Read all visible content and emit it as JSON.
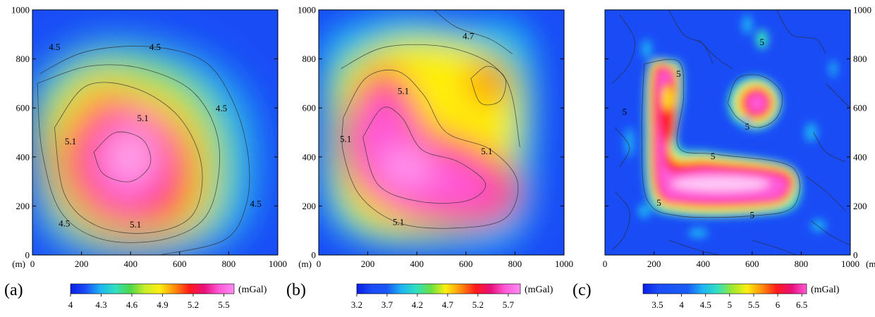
{
  "chart_data": [
    {
      "type": "heatmap",
      "panel_label": "(a)",
      "axis_unit": "(m)",
      "x_ticks": [
        "0",
        "200",
        "400",
        "600",
        "800",
        "1000"
      ],
      "y_ticks": [
        "0",
        "200",
        "400",
        "600",
        "800",
        "1000"
      ],
      "xlim": [
        0,
        1000
      ],
      "ylim": [
        0,
        1000
      ],
      "colorbar": {
        "unit": "(mGal)",
        "range": [
          4.0,
          5.6
        ],
        "ticks": [
          "4",
          "4.3",
          "4.6",
          "4.9",
          "5.2",
          "5.5"
        ],
        "colors": [
          "#0a1ee6",
          "#1a4cf6",
          "#1fb3f3",
          "#30e0c0",
          "#4fd64a",
          "#c8ee2a",
          "#ffef10",
          "#ff8f0c",
          "#ff1a1a",
          "#e8107a",
          "#ff5ad8",
          "#ff8cf2"
        ]
      },
      "contour_labels": [
        {
          "text": "4.5",
          "x": 90,
          "y": 845
        },
        {
          "text": "4.5",
          "x": 500,
          "y": 845
        },
        {
          "text": "4.5",
          "x": 770,
          "y": 595
        },
        {
          "text": "4.5",
          "x": 910,
          "y": 205
        },
        {
          "text": "4.5",
          "x": 130,
          "y": 125
        },
        {
          "text": "5.1",
          "x": 450,
          "y": 555
        },
        {
          "text": "5.1",
          "x": 155,
          "y": 460
        },
        {
          "text": "5.1",
          "x": 420,
          "y": 120
        }
      ],
      "field_max": {
        "x": 400,
        "y": 390,
        "value": 5.55
      }
    },
    {
      "type": "heatmap",
      "panel_label": "(b)",
      "axis_unit": "(m)",
      "x_ticks": [
        "0",
        "200",
        "400",
        "600",
        "800",
        "1000"
      ],
      "y_ticks": [
        "0",
        "200",
        "400",
        "600",
        "800",
        "1000"
      ],
      "xlim": [
        0,
        1000
      ],
      "ylim": [
        0,
        1000
      ],
      "colorbar": {
        "unit": "(mGal)",
        "range": [
          3.2,
          5.9
        ],
        "ticks": [
          "3.2",
          "3.7",
          "4.2",
          "4.7",
          "5.2",
          "5.7"
        ],
        "colors": [
          "#0a1ee6",
          "#1a4cf6",
          "#1a55f6",
          "#1fb3f3",
          "#30e0c0",
          "#6ae040",
          "#ffef10",
          "#ff8f0c",
          "#ff1a1a",
          "#e8107a",
          "#ff5ad8",
          "#ff8cf2"
        ]
      },
      "contour_labels": [
        {
          "text": "4.7",
          "x": 610,
          "y": 890
        },
        {
          "text": "5.1",
          "x": 345,
          "y": 665
        },
        {
          "text": "5.1",
          "x": 110,
          "y": 470
        },
        {
          "text": "5.1",
          "x": 685,
          "y": 420
        },
        {
          "text": "5.1",
          "x": 325,
          "y": 130
        }
      ],
      "field_max": {
        "x": 500,
        "y": 330,
        "value": 5.8
      }
    },
    {
      "type": "heatmap",
      "panel_label": "(c)",
      "axis_unit": "(m)",
      "x_ticks": [
        "0",
        "200",
        "400",
        "600",
        "800",
        "1000"
      ],
      "y_ticks": [
        "0",
        "200",
        "400",
        "600",
        "800",
        "1000"
      ],
      "xlim": [
        0,
        1000
      ],
      "ylim": [
        0,
        1000
      ],
      "colorbar": {
        "unit": "(mGal)",
        "range": [
          3.2,
          6.6
        ],
        "ticks": [
          "3.5",
          "4",
          "4.5",
          "5",
          "5.5",
          "6",
          "6.5"
        ],
        "colors": [
          "#0a1ee6",
          "#1a4cf6",
          "#1a55f6",
          "#1a5cf6",
          "#1fb3f3",
          "#30e0c0",
          "#9ae830",
          "#ffef10",
          "#ff8f0c",
          "#ff1a1a",
          "#e8107a",
          "#ff5ad8"
        ]
      },
      "contour_labels": [
        {
          "text": "5",
          "x": 640,
          "y": 865
        },
        {
          "text": "5",
          "x": 300,
          "y": 735
        },
        {
          "text": "5",
          "x": 80,
          "y": 580
        },
        {
          "text": "5",
          "x": 580,
          "y": 520
        },
        {
          "text": "5",
          "x": 440,
          "y": 400
        },
        {
          "text": "5",
          "x": 220,
          "y": 210
        },
        {
          "text": "5",
          "x": 600,
          "y": 160
        }
      ],
      "field_max": {
        "x": 460,
        "y": 290,
        "value": 6.5
      }
    }
  ]
}
